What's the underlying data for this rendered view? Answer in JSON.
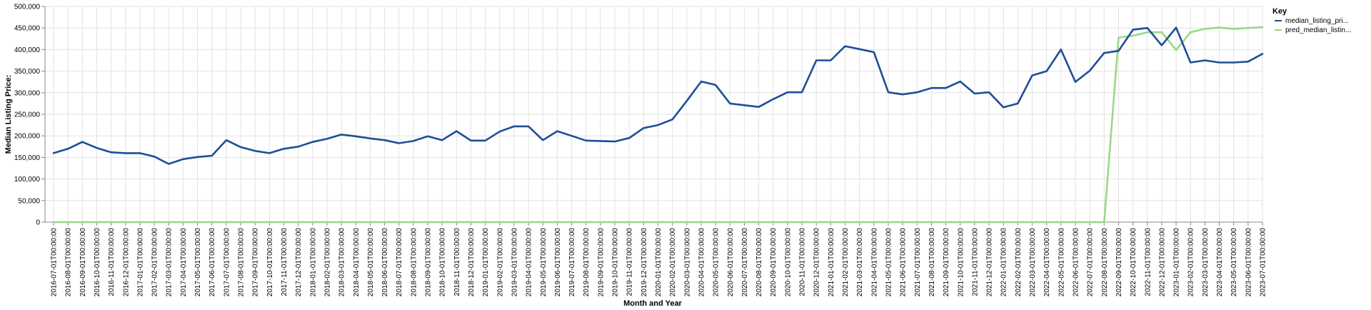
{
  "chart_data": {
    "type": "line",
    "xlabel": "Month and Year",
    "ylabel": "Median Listing Price:",
    "ylim": [
      0,
      500000
    ],
    "y_ticks": [
      "0",
      "50,000",
      "100,000",
      "150,000",
      "200,000",
      "250,000",
      "300,000",
      "350,000",
      "400,000",
      "450,000",
      "500,000"
    ],
    "grid": true,
    "legend": {
      "title": "Key",
      "placement": "top-right"
    },
    "x": [
      "2016-07-01T00:00:00",
      "2016-08-01T00:00:00",
      "2016-09-01T00:00:00",
      "2016-10-01T00:00:00",
      "2016-11-01T00:00:00",
      "2016-12-01T00:00:00",
      "2017-01-01T00:00:00",
      "2017-02-01T00:00:00",
      "2017-03-01T00:00:00",
      "2017-04-01T00:00:00",
      "2017-05-01T00:00:00",
      "2017-06-01T00:00:00",
      "2017-07-01T00:00:00",
      "2017-08-01T00:00:00",
      "2017-09-01T00:00:00",
      "2017-10-01T00:00:00",
      "2017-11-01T00:00:00",
      "2017-12-01T00:00:00",
      "2018-01-01T00:00:00",
      "2018-02-01T00:00:00",
      "2018-03-01T00:00:00",
      "2018-04-01T00:00:00",
      "2018-05-01T00:00:00",
      "2018-06-01T00:00:00",
      "2018-07-01T00:00:00",
      "2018-08-01T00:00:00",
      "2018-09-01T00:00:00",
      "2018-10-01T00:00:00",
      "2018-11-01T00:00:00",
      "2018-12-01T00:00:00",
      "2019-01-01T00:00:00",
      "2019-02-01T00:00:00",
      "2019-03-01T00:00:00",
      "2019-04-01T00:00:00",
      "2019-05-01T00:00:00",
      "2019-06-01T00:00:00",
      "2019-07-01T00:00:00",
      "2019-08-01T00:00:00",
      "2019-09-01T00:00:00",
      "2019-10-01T00:00:00",
      "2019-11-01T00:00:00",
      "2019-12-01T00:00:00",
      "2020-01-01T00:00:00",
      "2020-02-01T00:00:00",
      "2020-03-01T00:00:00",
      "2020-04-01T00:00:00",
      "2020-05-01T00:00:00",
      "2020-06-01T00:00:00",
      "2020-07-01T00:00:00",
      "2020-08-01T00:00:00",
      "2020-09-01T00:00:00",
      "2020-10-01T00:00:00",
      "2020-11-01T00:00:00",
      "2020-12-01T00:00:00",
      "2021-01-01T00:00:00",
      "2021-02-01T00:00:00",
      "2021-03-01T00:00:00",
      "2021-04-01T00:00:00",
      "2021-05-01T00:00:00",
      "2021-06-01T00:00:00",
      "2021-07-01T00:00:00",
      "2021-08-01T00:00:00",
      "2021-09-01T00:00:00",
      "2021-10-01T00:00:00",
      "2021-11-01T00:00:00",
      "2021-12-01T00:00:00",
      "2022-01-01T00:00:00",
      "2022-02-01T00:00:00",
      "2022-03-01T00:00:00",
      "2022-04-01T00:00:00",
      "2022-05-01T00:00:00",
      "2022-06-01T00:00:00",
      "2022-07-01T00:00:00",
      "2022-08-01T00:00:00",
      "2022-09-01T00:00:00",
      "2022-10-01T00:00:00",
      "2022-11-01T00:00:00",
      "2022-12-01T00:00:00",
      "2023-01-01T00:00:00",
      "2023-02-01T00:00:00",
      "2023-03-01T00:00:00",
      "2023-04-01T00:00:00",
      "2023-05-01T00:00:00",
      "2023-06-01T00:00:00",
      "2023-07-01T00:00:00"
    ],
    "series": [
      {
        "name": "median_listing_pri...",
        "color": "#1f4e96",
        "values": [
          160000,
          170000,
          186000,
          172000,
          162000,
          160000,
          160000,
          152000,
          135000,
          146000,
          151000,
          154000,
          190000,
          174000,
          165000,
          160000,
          170000,
          175000,
          186000,
          193000,
          203000,
          199000,
          194000,
          190000,
          183000,
          188000,
          199000,
          190000,
          211000,
          189000,
          189000,
          210000,
          222000,
          222000,
          190000,
          211000,
          200000,
          189000,
          188000,
          187000,
          195000,
          218000,
          225000,
          238000,
          281000,
          326000,
          318000,
          275000,
          271000,
          267000,
          285000,
          301000,
          301000,
          375000,
          375000,
          408000,
          401000,
          394000,
          301000,
          296000,
          301000,
          311000,
          311000,
          326000,
          298000,
          301000,
          266000,
          275000,
          340000,
          350000,
          400000,
          325000,
          351000,
          392000,
          397000,
          446000,
          450000,
          410000,
          451000,
          370000,
          375000,
          370000,
          370000,
          372000,
          390000
        ]
      },
      {
        "name": "pred_median_listin...",
        "color": "#98d88a",
        "values": [
          0,
          0,
          0,
          0,
          0,
          0,
          0,
          0,
          0,
          0,
          0,
          0,
          0,
          0,
          0,
          0,
          0,
          0,
          0,
          0,
          0,
          0,
          0,
          0,
          0,
          0,
          0,
          0,
          0,
          0,
          0,
          0,
          0,
          0,
          0,
          0,
          0,
          0,
          0,
          0,
          0,
          0,
          0,
          0,
          0,
          0,
          0,
          0,
          0,
          0,
          0,
          0,
          0,
          0,
          0,
          0,
          0,
          0,
          0,
          0,
          0,
          0,
          0,
          0,
          0,
          0,
          0,
          0,
          0,
          0,
          0,
          0,
          0,
          0,
          428000,
          432000,
          440000,
          440000,
          399000,
          440000,
          448000,
          451000,
          448000,
          450000,
          452000
        ]
      }
    ]
  }
}
